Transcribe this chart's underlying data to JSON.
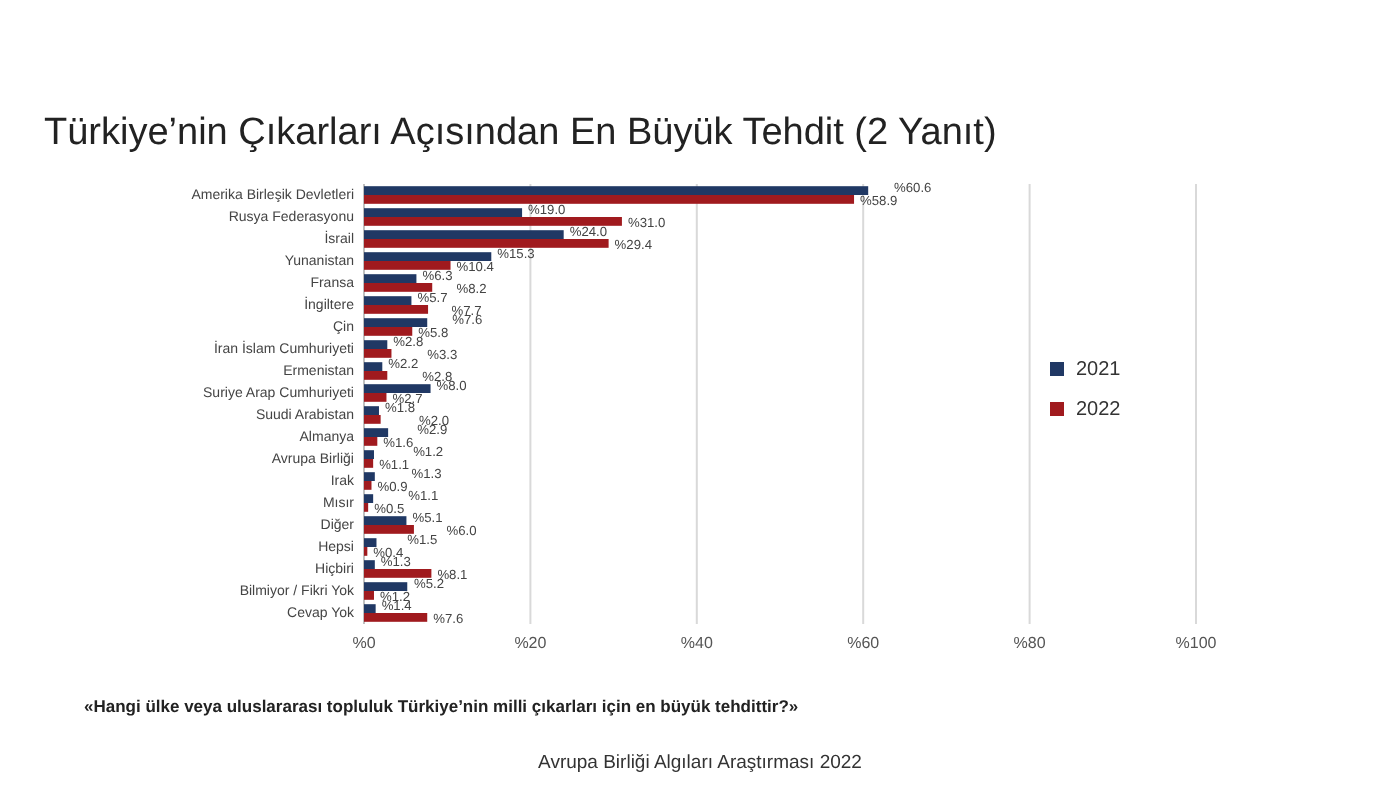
{
  "chart_data": {
    "type": "bar",
    "orientation": "horizontal",
    "title": "Türkiye’nin Çıkarları Açısından En Büyük Tehdit (2 Yanıt)",
    "categories": [
      "Amerika Birleşik Devletleri",
      "Rusya Federasyonu",
      "İsrail",
      "Yunanistan",
      "Fransa",
      "İngiltere",
      "Çin",
      "İran İslam Cumhuriyeti",
      "Ermenistan",
      "Suriye Arap Cumhuriyeti",
      "Suudi Arabistan",
      "Almanya",
      "Avrupa Birliği",
      "Irak",
      "Mısır",
      "Diğer",
      "Hepsi",
      "Hiçbiri",
      "Bilmiyor / Fikri Yok",
      "Cevap Yok"
    ],
    "series": [
      {
        "name": "2021",
        "color": "#203864",
        "values": [
          60.6,
          19.0,
          24.0,
          15.3,
          6.3,
          5.7,
          7.6,
          2.8,
          2.2,
          8.0,
          1.8,
          2.9,
          1.2,
          1.3,
          1.1,
          5.1,
          1.5,
          1.3,
          5.2,
          1.4
        ],
        "value_labels": [
          "%60.6",
          "%19.0",
          "%24.0",
          "%15.3",
          "%6.3",
          "%5.7",
          "%7.6",
          "%2.8",
          "%2.2",
          "%8.0",
          "%1.8",
          "%2.9",
          "%1.2",
          "%1.3",
          "%1.1",
          "%5.1",
          "%1.5",
          "%1.3",
          "%5.2",
          "%1.4"
        ]
      },
      {
        "name": "2022",
        "color": "#a01a1e",
        "values": [
          58.9,
          31.0,
          29.4,
          10.4,
          8.2,
          7.7,
          5.8,
          3.3,
          2.8,
          2.7,
          2.0,
          1.6,
          1.1,
          0.9,
          0.5,
          6.0,
          0.4,
          8.1,
          1.2,
          7.6
        ],
        "value_labels": [
          "%58.9",
          "%31.0",
          "%29.4",
          "%10.4",
          "%8.2",
          "%7.7",
          "%5.8",
          "%3.3",
          "%2.8",
          "%2.7",
          "%2.0",
          "%1.6",
          "%1.1",
          "%0.9",
          "%0.5",
          "%6.0",
          "%0.4",
          "%8.1",
          "%1.2",
          "%7.6"
        ]
      }
    ],
    "xlim": [
      0,
      100
    ],
    "xticks": [
      {
        "value": 0,
        "label": "%0"
      },
      {
        "value": 20,
        "label": "%20"
      },
      {
        "value": 40,
        "label": "%40"
      },
      {
        "value": 60,
        "label": "%60"
      },
      {
        "value": 80,
        "label": "%80"
      },
      {
        "value": 100,
        "label": "%100"
      }
    ],
    "grid": "x",
    "legend": "right",
    "annotations": [
      "«Hangi ülke veya uluslararası topluluk Türkiye’nin milli çıkarları için en büyük tehdittir?»",
      "Avrupa Birliği Algıları Araştırması 2022"
    ]
  }
}
